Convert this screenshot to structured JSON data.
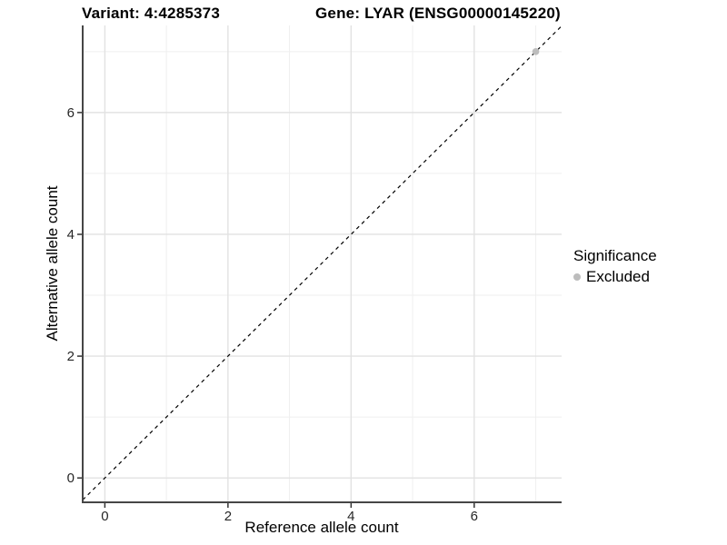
{
  "colors": {
    "background": "#ffffff",
    "axis_line": "#464646",
    "grid_major": "#e2e2e2",
    "grid_minor": "#efefef",
    "tick_mark": "#333333",
    "tick_label": "#262626",
    "point": "#bdbdbd",
    "reference_line": "#000000"
  },
  "chart_data": {
    "type": "scatter",
    "title_left": "Variant: 4:4285373",
    "title_right": "Gene: LYAR (ENSG00000145220)",
    "xlabel": "Reference allele count",
    "ylabel": "Alternative allele count",
    "xlim": [
      -0.36,
      7.42
    ],
    "ylim": [
      -0.4,
      7.43
    ],
    "x_ticks": [
      0,
      2,
      4,
      6
    ],
    "y_ticks": [
      0,
      2,
      4,
      6
    ],
    "x_minor_ticks": [
      1,
      3,
      5,
      7
    ],
    "y_minor_ticks": [
      1,
      3,
      5,
      7
    ],
    "grid": true,
    "series": [
      {
        "name": "Excluded",
        "color": "#bdbdbd",
        "points": [
          {
            "x": 7,
            "y": 7
          }
        ]
      }
    ],
    "reference_line": {
      "type": "identity",
      "style": "dashed",
      "color": "#000000"
    },
    "legend": {
      "title": "Significance",
      "position": "right",
      "items": [
        {
          "label": "Excluded",
          "color": "#bdbdbd"
        }
      ]
    }
  }
}
